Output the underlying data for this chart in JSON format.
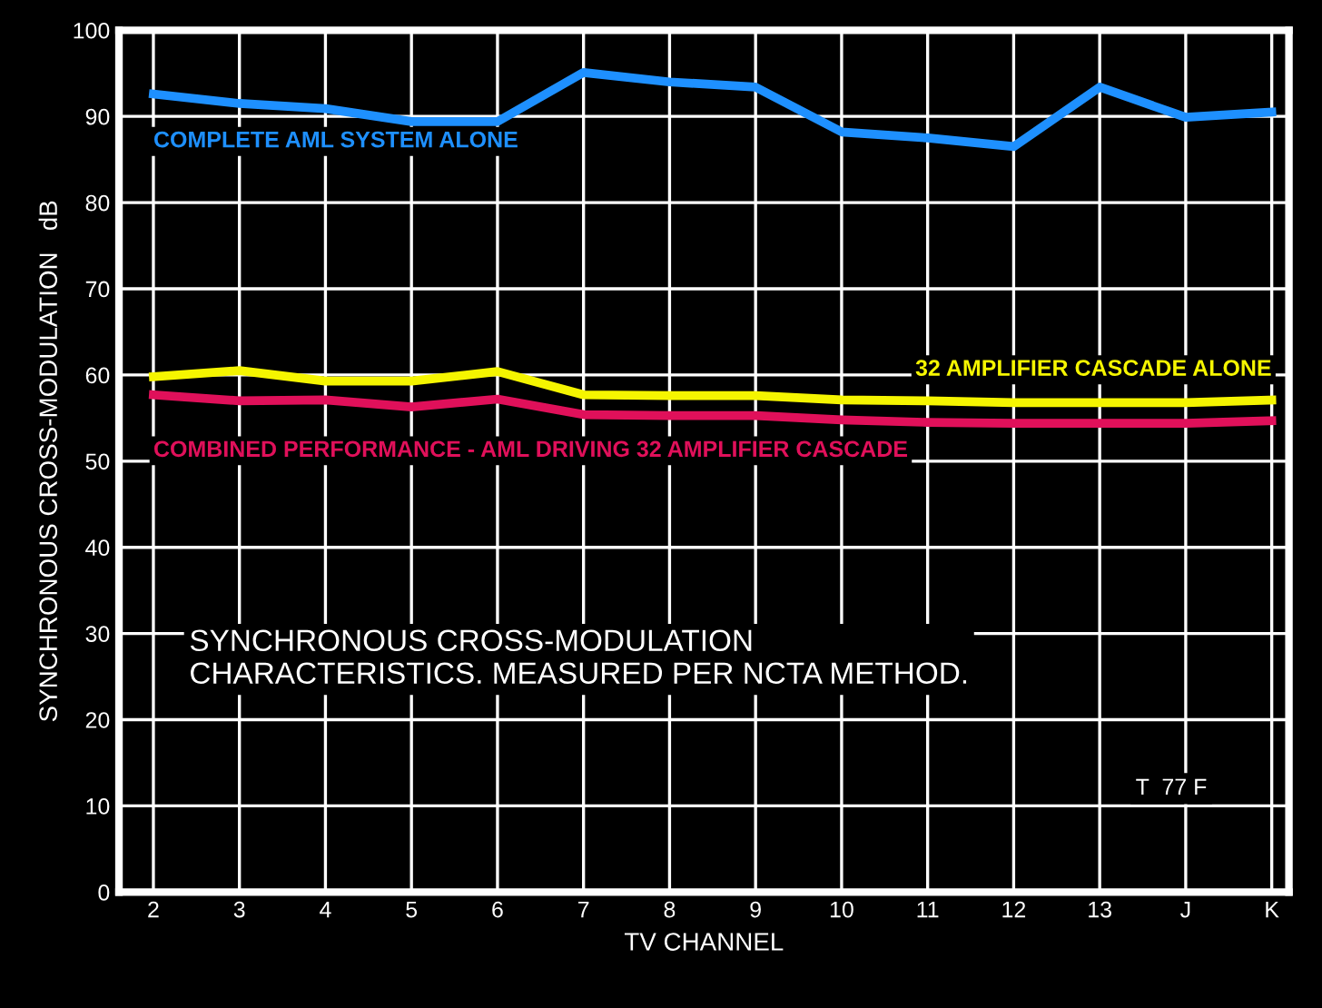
{
  "chart_data": {
    "type": "line",
    "xlabel": "TV CHANNEL",
    "ylabel": "SYNCHRONOUS CROSS-MODULATION   dB",
    "categories": [
      "2",
      "3",
      "4",
      "5",
      "6",
      "7",
      "8",
      "9",
      "10",
      "11",
      "12",
      "13",
      "J",
      "K"
    ],
    "series": [
      {
        "name": "COMPLETE AML SYSTEM ALONE",
        "color": "#1e90ff",
        "values": [
          92.6,
          91.5,
          90.9,
          89.4,
          89.4,
          95.1,
          94,
          93.4,
          88.2,
          87.5,
          86.5,
          93.4,
          89.9,
          90.5
        ]
      },
      {
        "name": "32 AMPLIFIER CASCADE ALONE",
        "color": "#f5f500",
        "values": [
          59.8,
          60.5,
          59.3,
          59.3,
          60.4,
          57.7,
          57.6,
          57.6,
          57.1,
          57,
          56.8,
          56.8,
          56.8,
          57.1
        ]
      },
      {
        "name": "COMBINED PERFORMANCE - AML DRIVING 32 AMPLIFIER CASCADE",
        "color": "#e0105a",
        "values": [
          57.7,
          57,
          57.1,
          56.3,
          57.2,
          55.4,
          55.3,
          55.3,
          54.8,
          54.5,
          54.4,
          54.4,
          54.4,
          54.7
        ]
      }
    ],
    "ylim": [
      0,
      100
    ],
    "yticks": [
      0,
      10,
      20,
      30,
      40,
      50,
      60,
      70,
      80,
      90,
      100
    ],
    "grid": true,
    "marker": "none",
    "line_style": "solid",
    "annotations": [
      "SYNCHRONOUS CROSS-MODULATION\nCHARACTERISTICS. MEASURED PER NCTA METHOD.",
      "T  77 F"
    ]
  }
}
